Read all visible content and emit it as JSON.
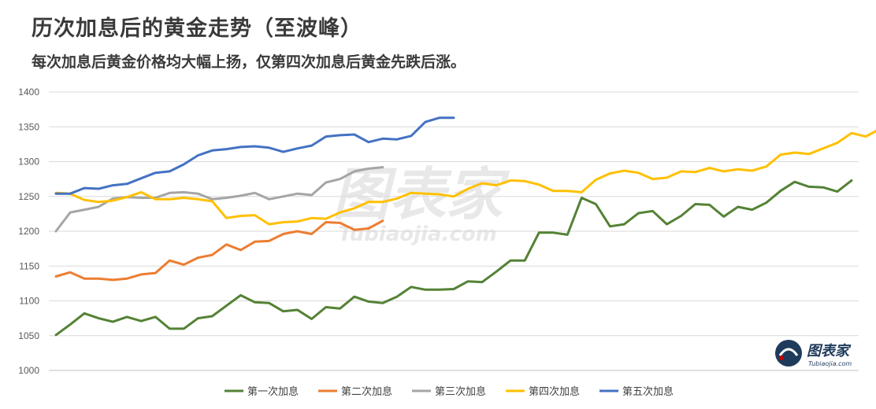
{
  "title": "历次加息后的黄金走势（至波峰）",
  "subtitle": "每次加息后黄金价格均大幅上扬，仅第四次加息后黄金先跌后涨。",
  "watermark": {
    "text": "图表家",
    "sub": "Tubiaojia.com"
  },
  "logo": {
    "text": "图表家",
    "sub": "Tubiaojia.com"
  },
  "colors": {
    "grid": "#d9d9d9",
    "axis": "#bfbfbf"
  },
  "chart_data": {
    "type": "line",
    "ylim": [
      1000,
      1400
    ],
    "yticks": [
      1000,
      1050,
      1100,
      1150,
      1200,
      1250,
      1300,
      1350,
      1400
    ],
    "xmax": 57,
    "grid": true,
    "legend_position": "bottom",
    "series": [
      {
        "name": "第一次加息",
        "color": "#548235",
        "values": [
          1051,
          1066,
          1082,
          1075,
          1070,
          1077,
          1071,
          1077,
          1060,
          1060,
          1075,
          1078,
          1093,
          1108,
          1098,
          1097,
          1085,
          1087,
          1074,
          1091,
          1089,
          1106,
          1099,
          1097,
          1106,
          1120,
          1116,
          1116,
          1117,
          1128,
          1127,
          1142,
          1158,
          1158,
          1198,
          1198,
          1195,
          1248,
          1239,
          1207,
          1210,
          1226,
          1229,
          1210,
          1222,
          1239,
          1238,
          1221,
          1235,
          1231,
          1241,
          1258,
          1271,
          1264,
          1263,
          1257,
          1273
        ]
      },
      {
        "name": "第二次加息",
        "color": "#ed7d31",
        "values": [
          1135,
          1141,
          1132,
          1132,
          1130,
          1132,
          1138,
          1140,
          1158,
          1152,
          1162,
          1166,
          1181,
          1173,
          1185,
          1186,
          1196,
          1200,
          1196,
          1213,
          1212,
          1202,
          1204,
          1215
        ]
      },
      {
        "name": "第三次加息",
        "color": "#a5a5a5",
        "values": [
          1200,
          1227,
          1231,
          1235,
          1247,
          1249,
          1248,
          1248,
          1255,
          1256,
          1254,
          1246,
          1248,
          1251,
          1255,
          1246,
          1250,
          1254,
          1252,
          1270,
          1275,
          1286,
          1290,
          1292
        ]
      },
      {
        "name": "第四次加息",
        "color": "#ffc000",
        "values": [
          1255,
          1254,
          1245,
          1242,
          1244,
          1249,
          1256,
          1246,
          1246,
          1248,
          1246,
          1243,
          1219,
          1222,
          1223,
          1210,
          1213,
          1214,
          1219,
          1218,
          1227,
          1233,
          1242,
          1242,
          1247,
          1255,
          1254,
          1253,
          1250,
          1261,
          1269,
          1266,
          1273,
          1272,
          1267,
          1258,
          1258,
          1256,
          1274,
          1283,
          1287,
          1284,
          1275,
          1277,
          1286,
          1285,
          1291,
          1286,
          1289,
          1287,
          1293,
          1310,
          1313,
          1311,
          1319,
          1327,
          1341,
          1336,
          1347,
          1348
        ]
      },
      {
        "name": "第五次加息",
        "color": "#4472c4",
        "values": [
          1254,
          1254,
          1262,
          1261,
          1266,
          1268,
          1276,
          1284,
          1286,
          1296,
          1309,
          1316,
          1318,
          1321,
          1322,
          1320,
          1314,
          1319,
          1323,
          1336,
          1338,
          1339,
          1328,
          1333,
          1332,
          1337,
          1357,
          1363,
          1363
        ]
      }
    ]
  }
}
